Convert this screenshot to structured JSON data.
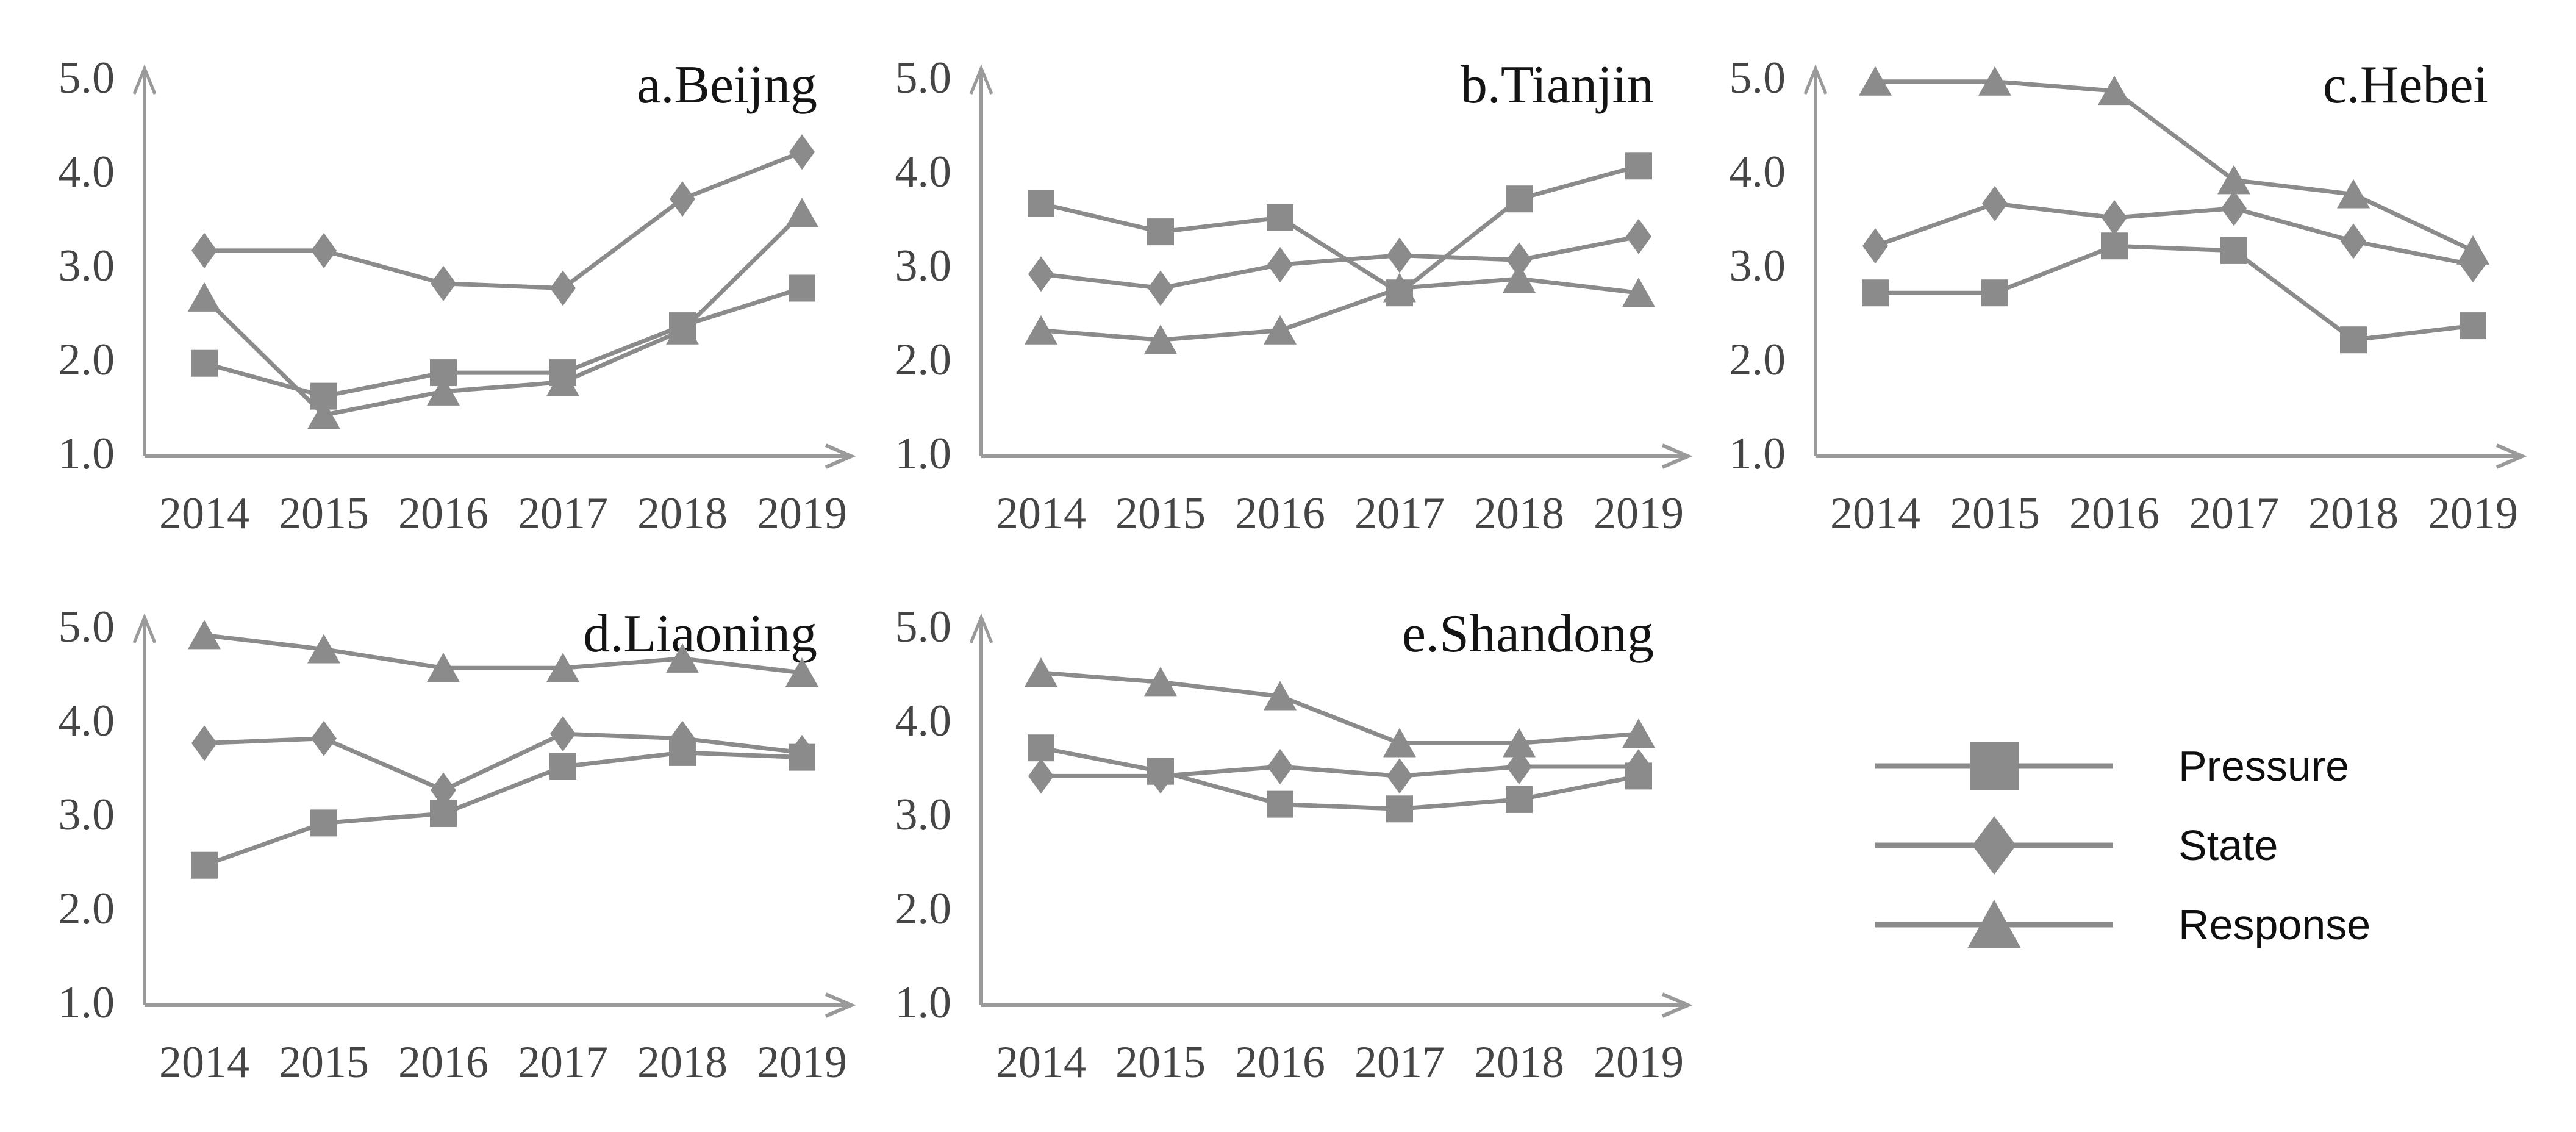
{
  "figure": {
    "series_color": "#8b8b8b",
    "axis_color": "#9a9a9a",
    "tick_text_color": "#454545",
    "title_text_color": "#141414",
    "y_ticks": [
      "5.0",
      "4.0",
      "3.0",
      "2.0",
      "1.0"
    ],
    "x_ticks": [
      "2014",
      "2015",
      "2016",
      "2017",
      "2018",
      "2019"
    ]
  },
  "legend": {
    "items": [
      {
        "label": "Pressure",
        "marker": "square"
      },
      {
        "label": "State",
        "marker": "diamond"
      },
      {
        "label": "Response",
        "marker": "triangle"
      }
    ]
  },
  "chart_data": [
    {
      "type": "line",
      "title": "a.Beijng",
      "x": [
        "2014",
        "2015",
        "2016",
        "2017",
        "2018",
        "2019"
      ],
      "ylim": [
        1.0,
        5.0
      ],
      "y_tick_labels": [
        "5.0",
        "4.0",
        "3.0",
        "2.0",
        "1.0"
      ],
      "grid": false,
      "series": [
        {
          "name": "Pressure",
          "marker": "square",
          "values": [
            1.95,
            1.6,
            1.85,
            1.85,
            2.35,
            2.75
          ]
        },
        {
          "name": "State",
          "marker": "diamond",
          "values": [
            3.15,
            3.15,
            2.8,
            2.75,
            3.7,
            4.2
          ]
        },
        {
          "name": "Response",
          "marker": "triangle",
          "values": [
            2.65,
            1.4,
            1.65,
            1.75,
            2.3,
            3.55
          ]
        }
      ]
    },
    {
      "type": "line",
      "title": "b.Tianjin",
      "x": [
        "2014",
        "2015",
        "2016",
        "2017",
        "2018",
        "2019"
      ],
      "ylim": [
        1.0,
        5.0
      ],
      "y_tick_labels": [
        "5.0",
        "4.0",
        "3.0",
        "2.0",
        "1.0"
      ],
      "grid": false,
      "series": [
        {
          "name": "Pressure",
          "marker": "square",
          "values": [
            3.65,
            3.35,
            3.5,
            2.7,
            3.7,
            4.05
          ]
        },
        {
          "name": "State",
          "marker": "diamond",
          "values": [
            2.9,
            2.75,
            3.0,
            3.1,
            3.05,
            3.3
          ]
        },
        {
          "name": "Response",
          "marker": "triangle",
          "values": [
            2.3,
            2.2,
            2.3,
            2.75,
            2.85,
            2.7
          ]
        }
      ]
    },
    {
      "type": "line",
      "title": "c.Hebei",
      "x": [
        "2014",
        "2015",
        "2016",
        "2017",
        "2018",
        "2019"
      ],
      "ylim": [
        1.0,
        5.0
      ],
      "y_tick_labels": [
        "5.0",
        "4.0",
        "3.0",
        "2.0",
        "1.0"
      ],
      "grid": false,
      "series": [
        {
          "name": "Pressure",
          "marker": "square",
          "values": [
            2.7,
            2.7,
            3.2,
            3.15,
            2.2,
            2.35
          ]
        },
        {
          "name": "State",
          "marker": "diamond",
          "values": [
            3.2,
            3.65,
            3.5,
            3.6,
            3.25,
            3.0
          ]
        },
        {
          "name": "Response",
          "marker": "triangle",
          "values": [
            4.95,
            4.95,
            4.85,
            3.9,
            3.75,
            3.15
          ]
        }
      ]
    },
    {
      "type": "line",
      "title": "d.Liaoning",
      "x": [
        "2014",
        "2015",
        "2016",
        "2017",
        "2018",
        "2019"
      ],
      "ylim": [
        1.0,
        5.0
      ],
      "y_tick_labels": [
        "5.0",
        "4.0",
        "3.0",
        "2.0",
        "1.0"
      ],
      "grid": false,
      "series": [
        {
          "name": "Pressure",
          "marker": "square",
          "values": [
            2.45,
            2.9,
            3.0,
            3.5,
            3.65,
            3.6
          ]
        },
        {
          "name": "State",
          "marker": "diamond",
          "values": [
            3.75,
            3.8,
            3.25,
            3.85,
            3.8,
            3.65
          ]
        },
        {
          "name": "Response",
          "marker": "triangle",
          "values": [
            4.9,
            4.75,
            4.55,
            4.55,
            4.65,
            4.5
          ]
        }
      ]
    },
    {
      "type": "line",
      "title": "e.Shandong",
      "x": [
        "2014",
        "2015",
        "2016",
        "2017",
        "2018",
        "2019"
      ],
      "ylim": [
        1.0,
        5.0
      ],
      "y_tick_labels": [
        "5.0",
        "4.0",
        "3.0",
        "2.0",
        "1.0"
      ],
      "grid": false,
      "series": [
        {
          "name": "Pressure",
          "marker": "square",
          "values": [
            3.7,
            3.45,
            3.1,
            3.05,
            3.15,
            3.4
          ]
        },
        {
          "name": "State",
          "marker": "diamond",
          "values": [
            3.4,
            3.4,
            3.5,
            3.4,
            3.5,
            3.5
          ]
        },
        {
          "name": "Response",
          "marker": "triangle",
          "values": [
            4.5,
            4.4,
            4.25,
            3.75,
            3.75,
            3.85
          ]
        }
      ]
    }
  ]
}
